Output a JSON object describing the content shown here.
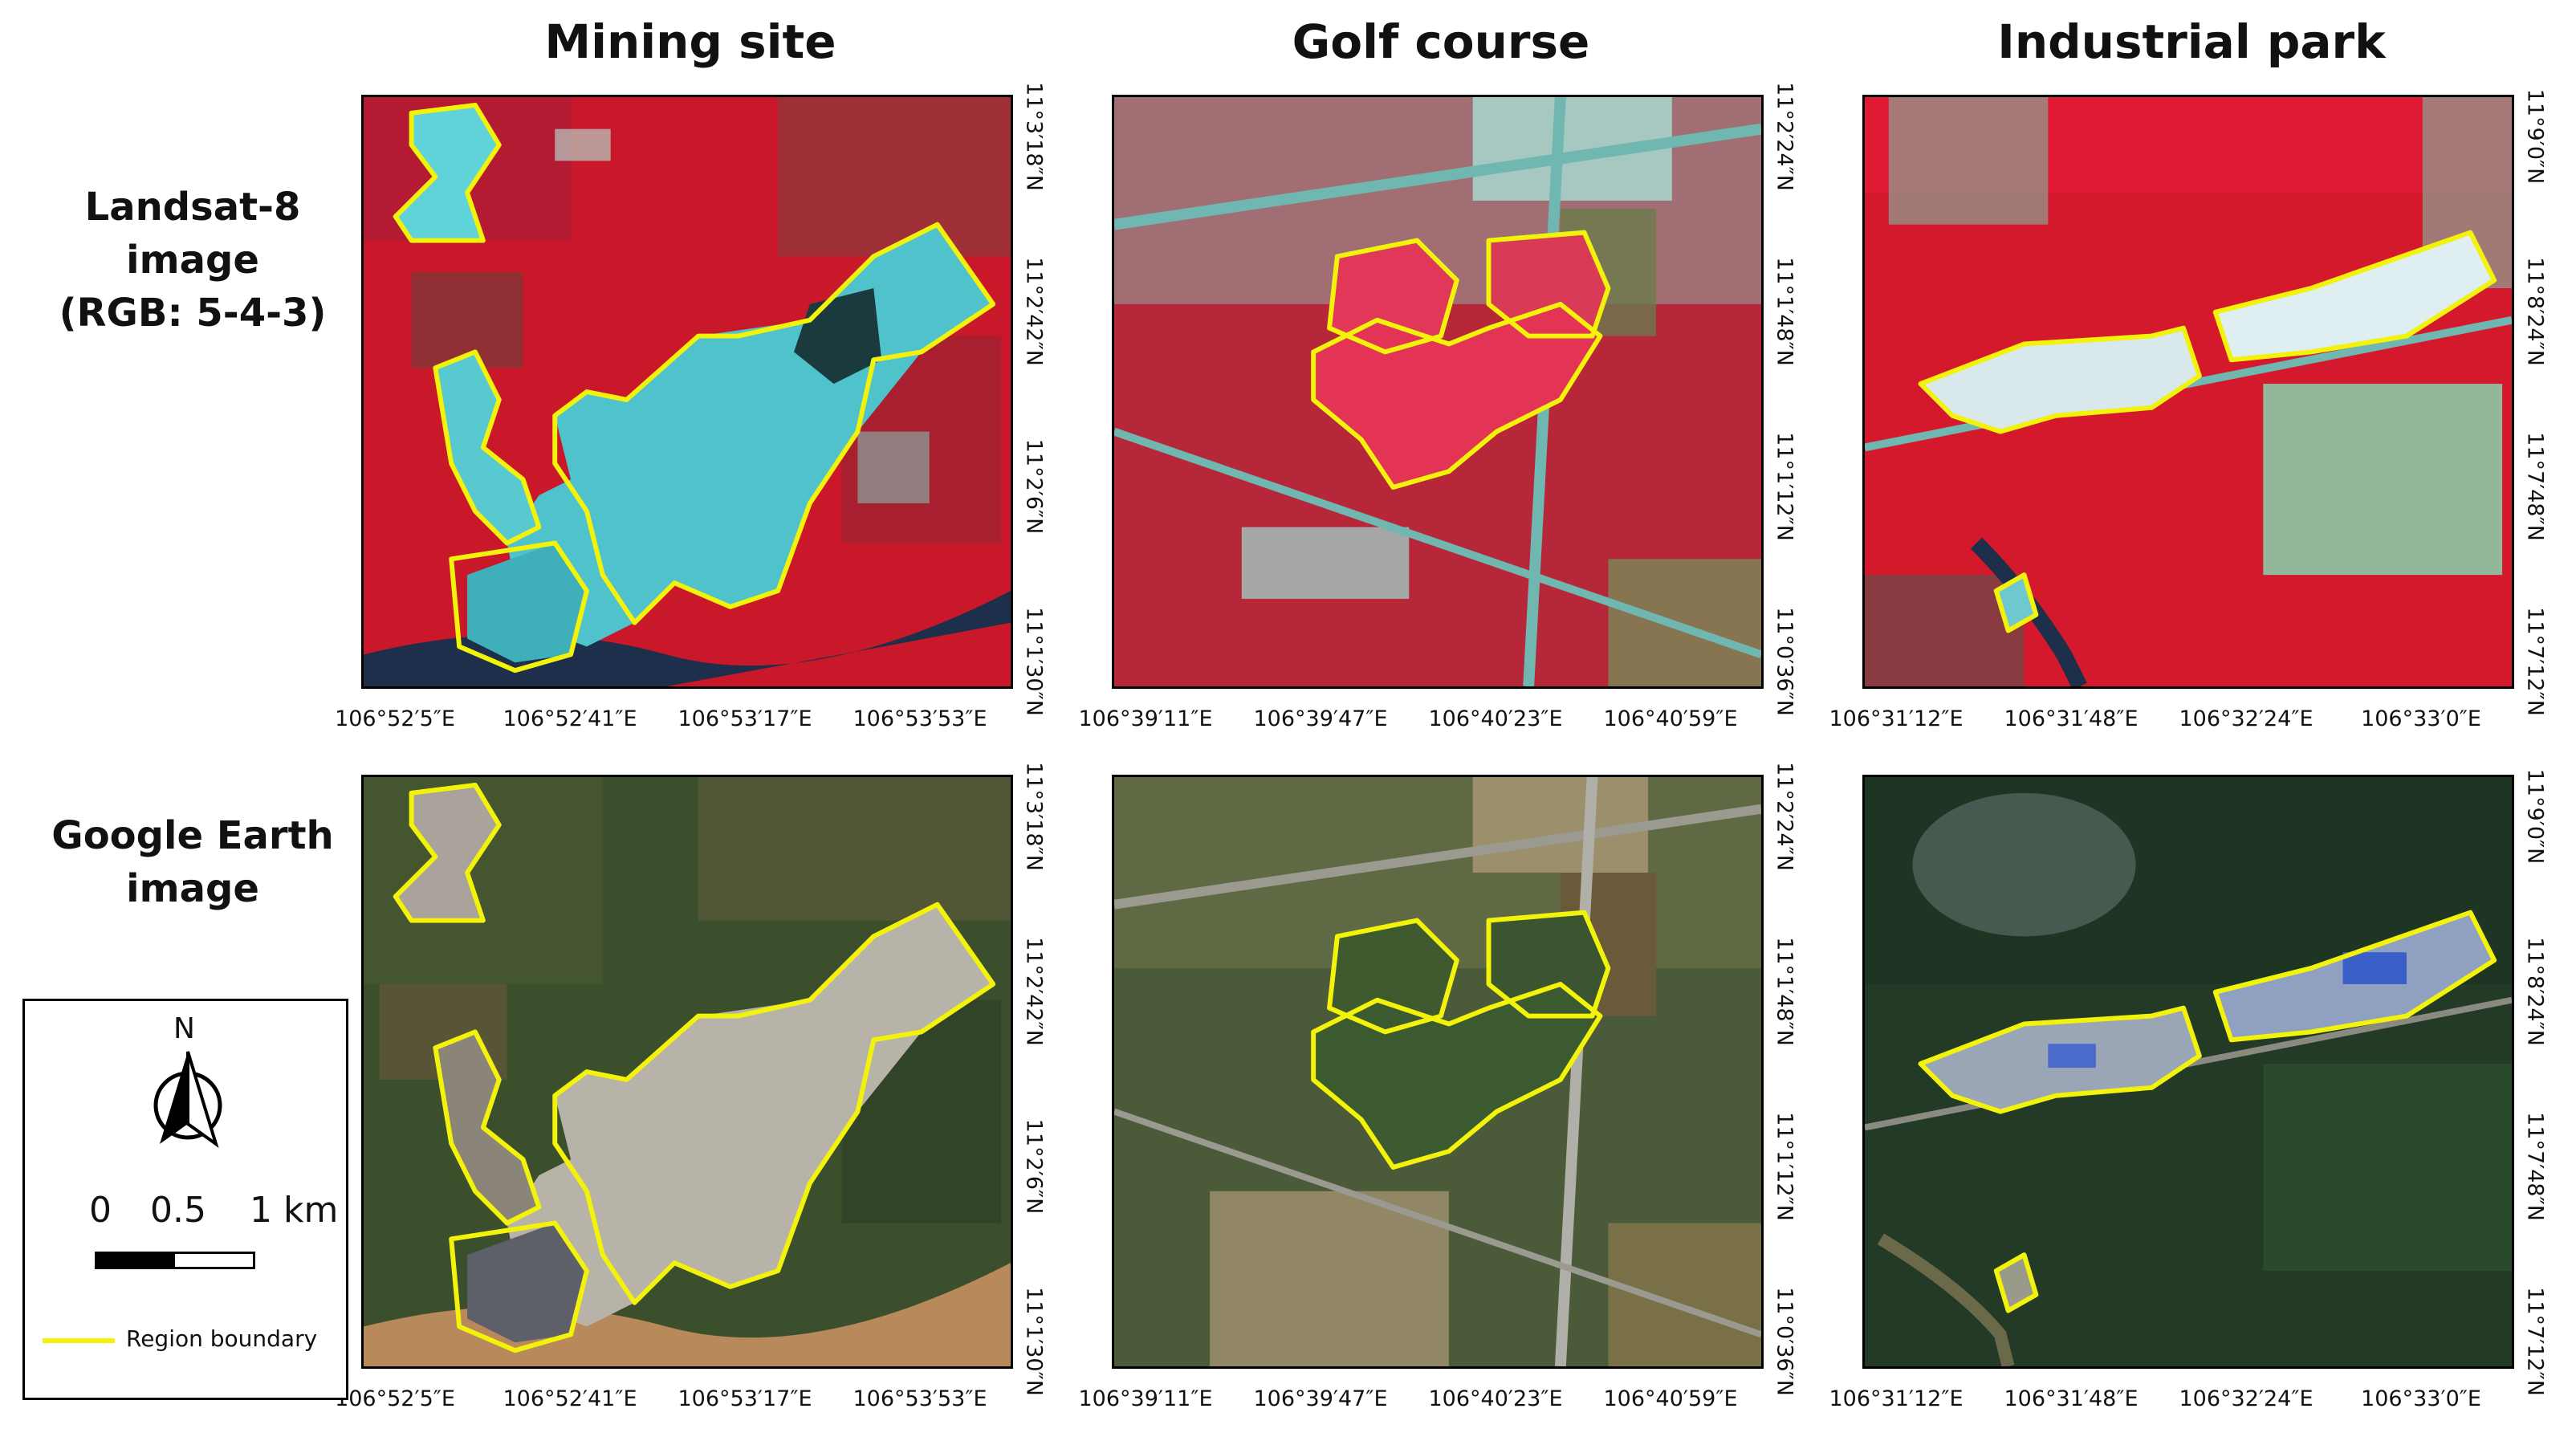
{
  "columns": [
    {
      "title": "Mining site",
      "lon_ticks": [
        "106°52′5″E",
        "106°52′41″E",
        "106°53′17″E",
        "106°53′53″E"
      ],
      "lat_ticks": [
        "11°3′18″N",
        "11°2′42″N",
        "11°2′6″N",
        "11°1′30″N"
      ]
    },
    {
      "title": "Golf course",
      "lon_ticks": [
        "106°39′11″E",
        "106°39′47″E",
        "106°40′23″E",
        "106°40′59″E"
      ],
      "lat_ticks": [
        "11°2′24″N",
        "11°1′48″N",
        "11°1′12″N",
        "11°0′36″N"
      ]
    },
    {
      "title": "Industrial park",
      "lon_ticks": [
        "106°31′12″E",
        "106°31′48″E",
        "106°32′24″E",
        "106°33′0″E"
      ],
      "lat_ticks": [
        "11°9′0″N",
        "11°8′24″N",
        "11°7′48″N",
        "11°7′12″N"
      ]
    }
  ],
  "rows": [
    {
      "label_lines": [
        "Landsat-8",
        "image",
        "(RGB: 5-4-3)"
      ]
    },
    {
      "label_lines": [
        "Google Earth",
        "image"
      ]
    }
  ],
  "legend": {
    "north": "N",
    "scale_0": "0",
    "scale_mid": "0.5",
    "scale_max": "1 km",
    "boundary_label": "Region boundary"
  },
  "colors": {
    "boundary": "#f2f20a",
    "landsat_veg": "#d3192b",
    "landsat_bare": "#5fd3d8",
    "landsat_built": "#7aa8a3",
    "ge_veg": "#2f4a26",
    "ge_bare": "#b8b3a8",
    "river_ge": "#b8895a",
    "river_ls": "#1d2f4a"
  }
}
